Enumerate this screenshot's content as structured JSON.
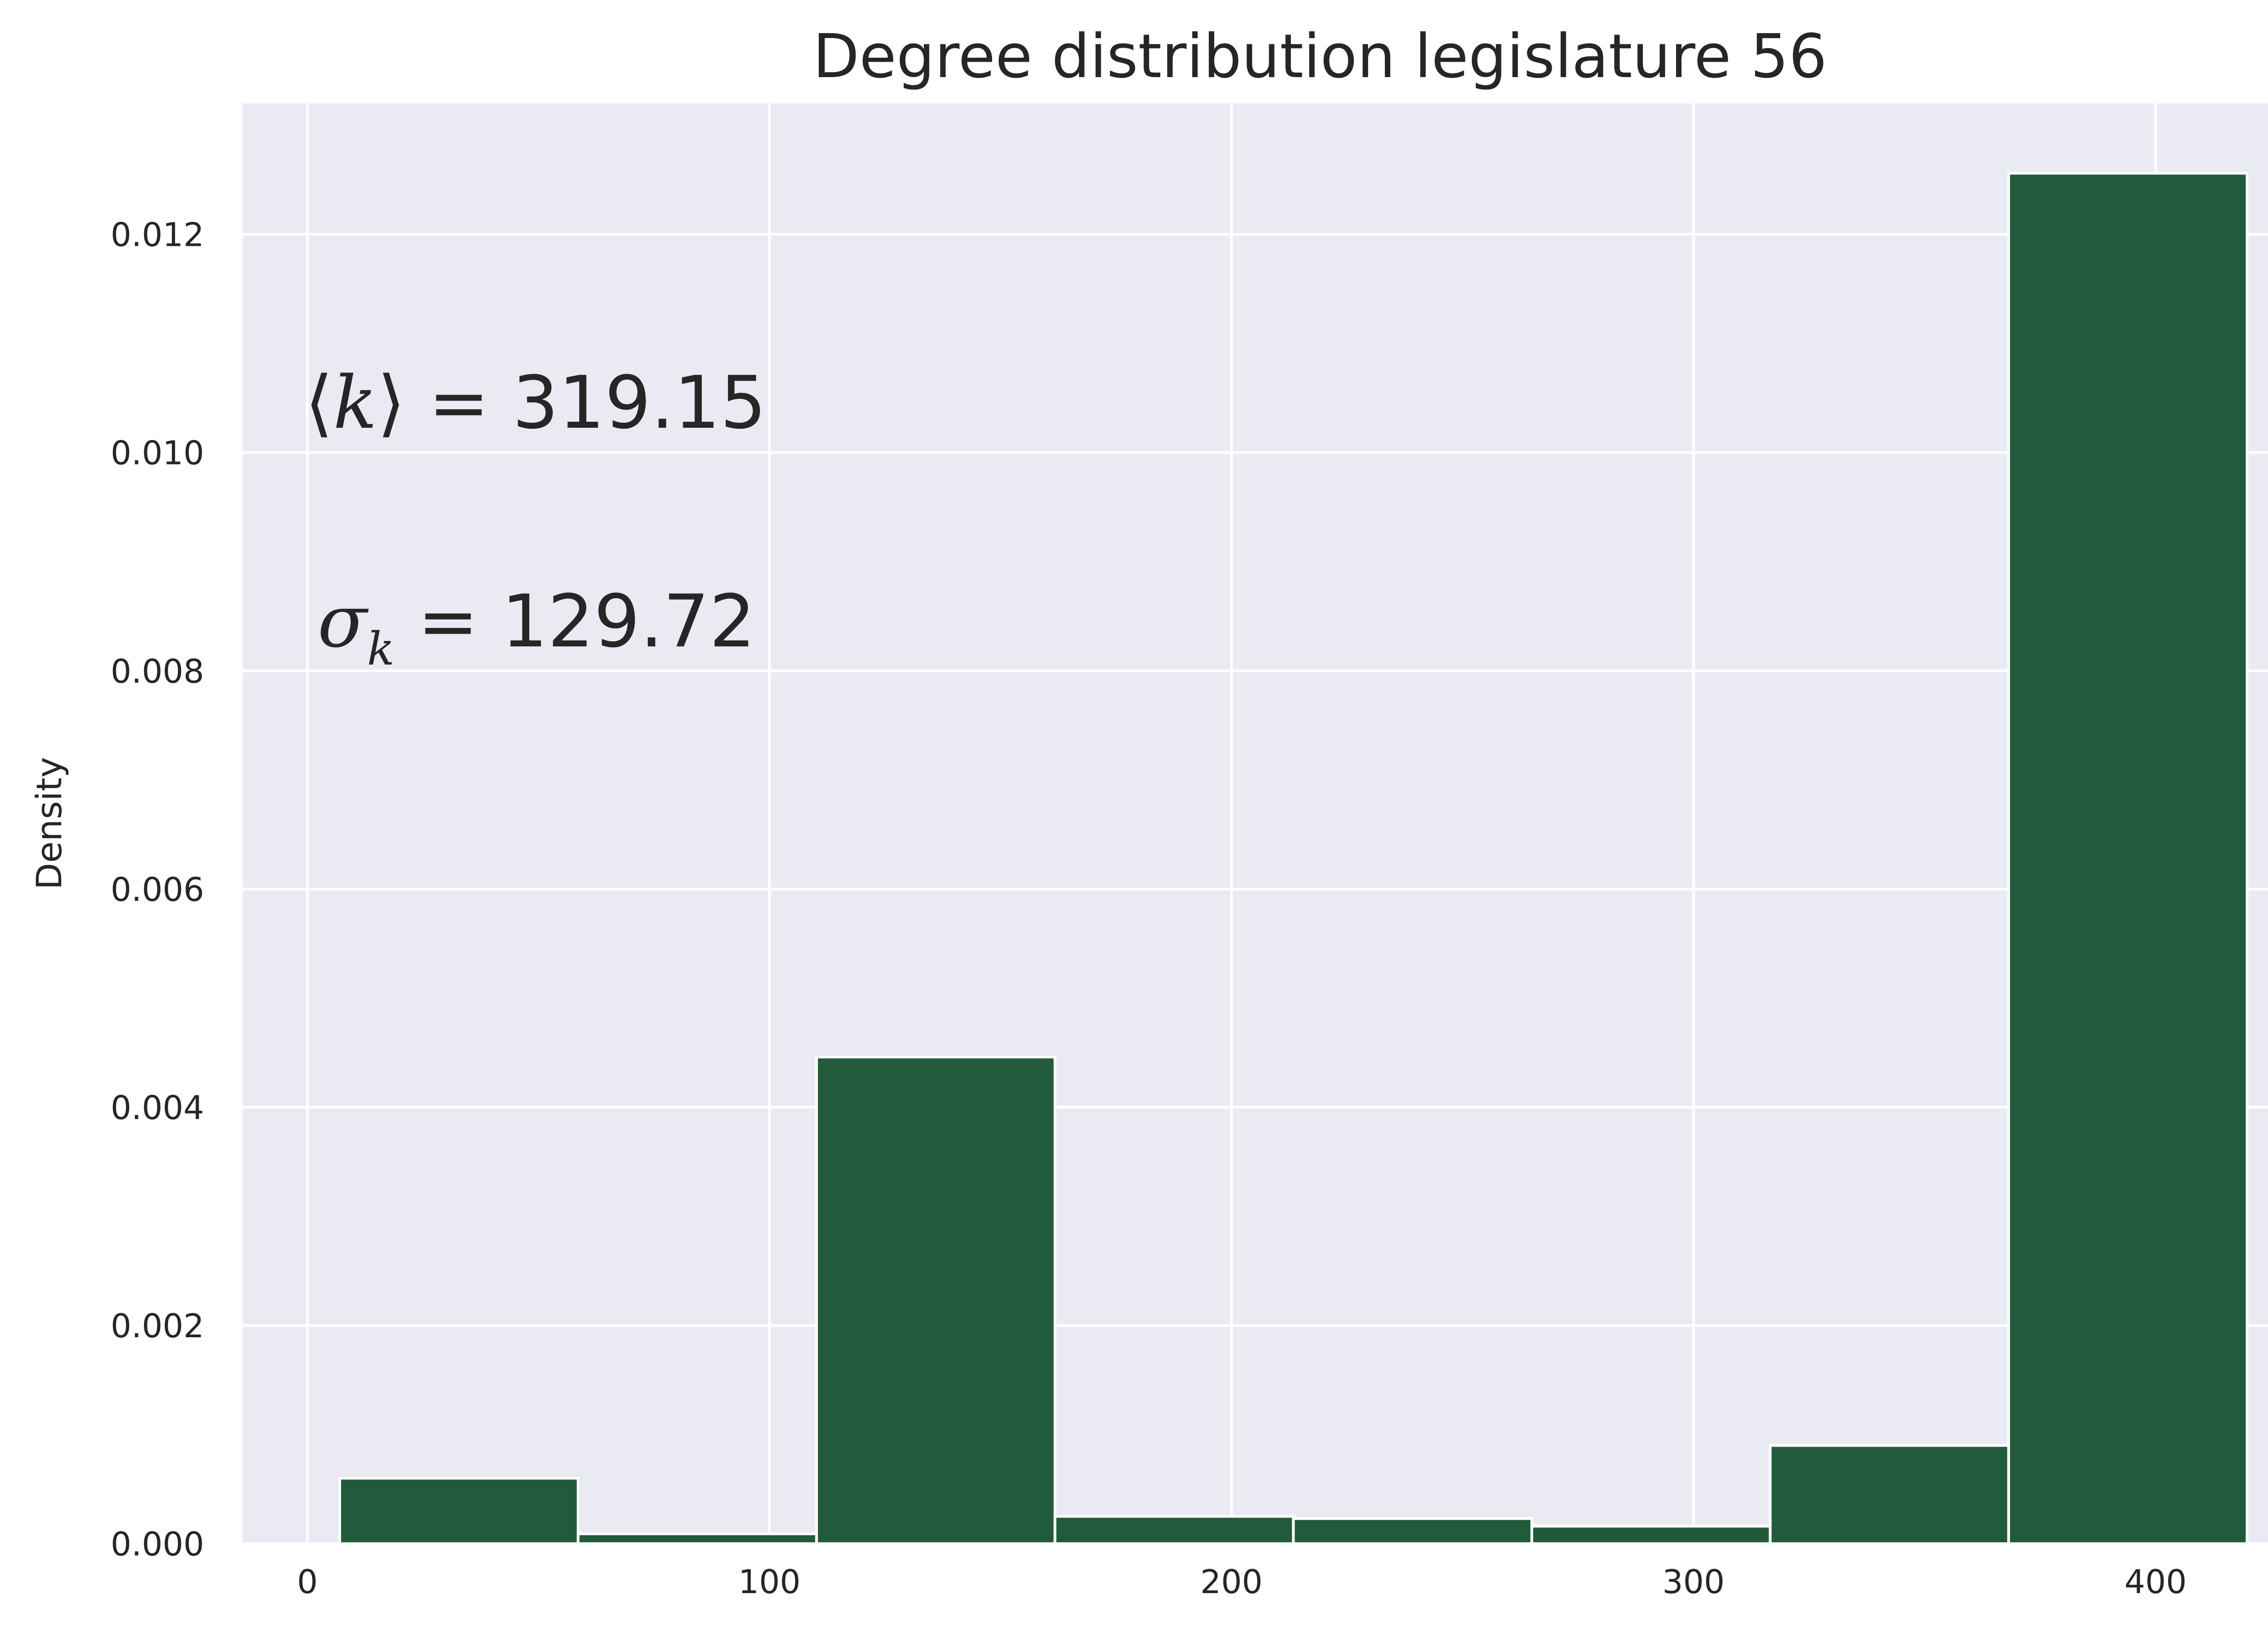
{
  "chart_data": {
    "type": "bar",
    "title": "Degree distribution legislature 56",
    "xlabel": "",
    "ylabel": "Density",
    "xlim": [
      -14,
      442
    ],
    "ylim": [
      0,
      0.0132
    ],
    "grid": true,
    "x_ticks": [
      0,
      100,
      200,
      300,
      400
    ],
    "x_tick_labels": [
      "0",
      "100",
      "200",
      "300",
      "400"
    ],
    "y_ticks": [
      0,
      0.002,
      0.004,
      0.006,
      0.008,
      0.01,
      0.012
    ],
    "y_tick_labels": [
      "0.000",
      "0.002",
      "0.004",
      "0.006",
      "0.008",
      "0.010",
      "0.012"
    ],
    "bin_edges": [
      7,
      58.6,
      110.2,
      161.8,
      213.4,
      265.0,
      316.6,
      368.2,
      419.8
    ],
    "values": [
      0.0006,
      9e-05,
      0.00446,
      0.00025,
      0.00023,
      0.00016,
      0.0009,
      0.01256
    ],
    "bar_color": "#225b3b",
    "annotations": [
      {
        "symbol_left": "⟨",
        "symbol_var": "k",
        "symbol_right": "⟩",
        "equals": " = ",
        "value": "319.15"
      },
      {
        "symbol_var": "σ",
        "subscript": "k",
        "equals": " = ",
        "value": "129.72"
      }
    ]
  }
}
